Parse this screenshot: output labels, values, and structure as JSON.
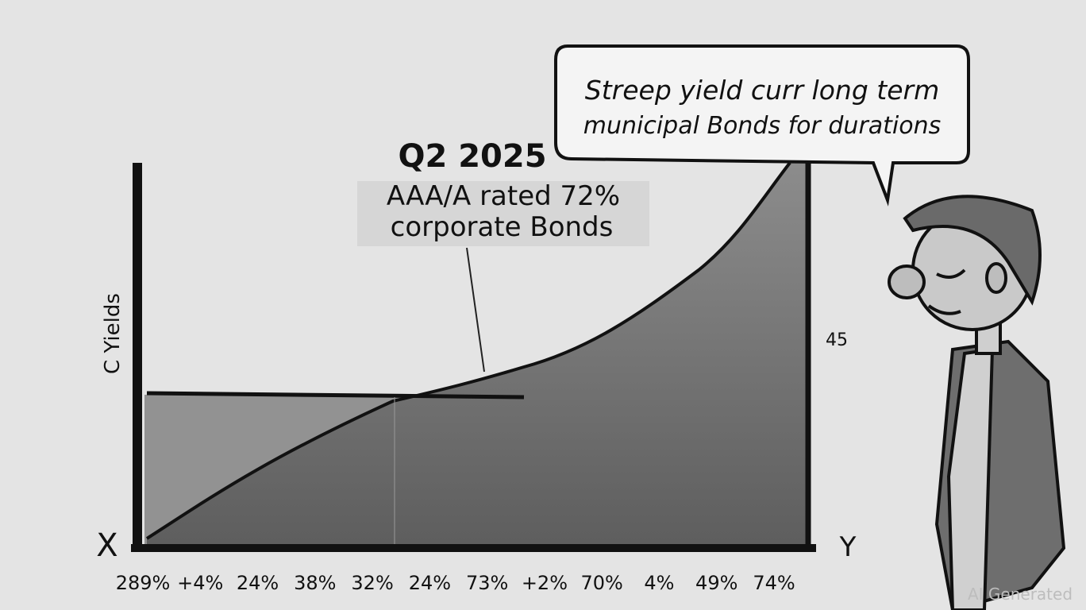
{
  "chart": {
    "title": "Q2 2025",
    "annotation": [
      "AAA/A rated 72%",
      "corporate Bonds"
    ],
    "speech": [
      "Streep yield curr long term",
      "municipal  Bonds for durations"
    ],
    "y_label": "C Yields",
    "right_label": "45",
    "x_corner": "X",
    "y_corner": "Y",
    "x_ticks": [
      "289%",
      "+4%",
      "24%",
      "38%",
      "32%",
      "24%",
      "73%",
      "+2%",
      "70%",
      "4%",
      "49%",
      "74%"
    ],
    "watermark": "AI Generated"
  }
}
